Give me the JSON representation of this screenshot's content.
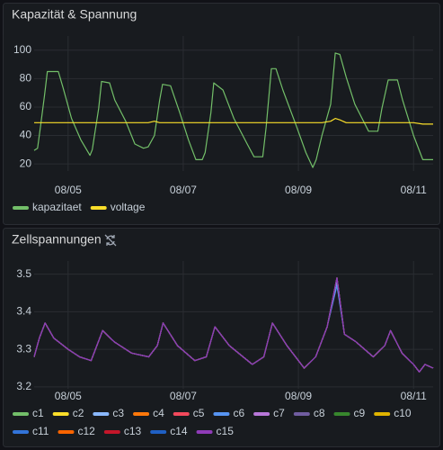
{
  "chart_data": [
    {
      "type": "line",
      "title": "Kapazität & Spannung",
      "x": [
        4.41,
        4.47,
        4.52,
        4.59,
        4.64,
        4.83,
        4.91,
        5.06,
        5.22,
        5.38,
        5.42,
        5.53,
        5.58,
        5.72,
        5.81,
        6.0,
        6.16,
        6.31,
        6.39,
        6.5,
        6.59,
        6.64,
        6.78,
        6.94,
        7.09,
        7.22,
        7.33,
        7.38,
        7.48,
        7.53,
        7.69,
        7.88,
        8.11,
        8.23,
        8.38,
        8.44,
        8.53,
        8.61,
        8.73,
        8.97,
        9.13,
        9.25,
        9.31,
        9.41,
        9.56,
        9.64,
        9.72,
        9.83,
        9.98,
        10.22,
        10.38,
        10.45,
        10.56,
        10.72,
        10.81,
        11.0,
        11.16,
        11.34
      ],
      "xlim": [
        4.41,
        11.34
      ],
      "xticks": [
        {
          "value": 5,
          "label": "08/05"
        },
        {
          "value": 7,
          "label": "08/07"
        },
        {
          "value": 9,
          "label": "08/09"
        },
        {
          "value": 11,
          "label": "08/11"
        }
      ],
      "ylim": [
        15,
        110
      ],
      "yticks": [
        20,
        40,
        60,
        80,
        100
      ],
      "grid": true,
      "series": [
        {
          "name": "kapazitaet",
          "color": "#73bf69",
          "values": [
            29.5,
            31,
            46,
            68,
            85,
            85,
            74,
            52,
            37,
            26,
            30,
            59,
            78,
            77,
            65,
            50,
            34,
            31,
            32,
            40,
            65,
            76,
            75,
            56,
            37,
            23,
            23,
            28,
            56,
            77,
            72,
            52,
            34,
            25,
            25,
            46,
            87,
            87,
            72,
            46,
            28,
            17.5,
            23,
            40,
            62,
            98,
            97,
            81,
            62,
            43,
            43,
            59,
            79,
            79,
            65,
            40,
            23,
            23
          ]
        },
        {
          "name": "voltage",
          "color": "#fade2a",
          "values": [
            49,
            49,
            49,
            49,
            49,
            49,
            49,
            49,
            49,
            49,
            49,
            49,
            49,
            49,
            49,
            49,
            49,
            49,
            49,
            50,
            49,
            49,
            49,
            49,
            49,
            49,
            49,
            49,
            49,
            49,
            49,
            49,
            49,
            49,
            49,
            49,
            49,
            49,
            49,
            49,
            49,
            49,
            49,
            49,
            50,
            52,
            51,
            49,
            49,
            49,
            49,
            49,
            49,
            49,
            49,
            49,
            48,
            48
          ]
        }
      ]
    },
    {
      "type": "line",
      "title": "Zellspannungen",
      "x": [
        4.41,
        4.5,
        4.6,
        4.75,
        5.0,
        5.2,
        5.4,
        5.5,
        5.6,
        5.8,
        6.1,
        6.4,
        6.55,
        6.65,
        6.9,
        7.2,
        7.4,
        7.55,
        7.8,
        8.2,
        8.4,
        8.55,
        8.8,
        9.1,
        9.3,
        9.5,
        9.67,
        9.8,
        10.0,
        10.3,
        10.5,
        10.6,
        10.8,
        11.0,
        11.1,
        11.2,
        11.34
      ],
      "xlim": [
        4.41,
        11.34
      ],
      "xticks": [
        {
          "value": 5,
          "label": "08/05"
        },
        {
          "value": 7,
          "label": "08/07"
        },
        {
          "value": 9,
          "label": "08/09"
        },
        {
          "value": 11,
          "label": "08/11"
        }
      ],
      "ylim": [
        3.195,
        3.535
      ],
      "yticks": [
        3.2,
        3.3,
        3.4,
        3.5
      ],
      "grid": true,
      "series": [
        {
          "name": "c1",
          "color": "#73bf69",
          "values": [
            3.28,
            3.33,
            3.37,
            3.33,
            3.3,
            3.28,
            3.27,
            3.31,
            3.35,
            3.32,
            3.29,
            3.28,
            3.31,
            3.37,
            3.31,
            3.27,
            3.28,
            3.36,
            3.31,
            3.26,
            3.28,
            3.37,
            3.31,
            3.25,
            3.28,
            3.36,
            3.49,
            3.34,
            3.32,
            3.28,
            3.31,
            3.35,
            3.29,
            3.26,
            3.24,
            3.26,
            3.25
          ]
        },
        {
          "name": "c2",
          "color": "#fade2a",
          "values": [
            3.28,
            3.33,
            3.37,
            3.33,
            3.3,
            3.28,
            3.27,
            3.31,
            3.35,
            3.32,
            3.29,
            3.28,
            3.31,
            3.37,
            3.31,
            3.27,
            3.28,
            3.36,
            3.31,
            3.26,
            3.28,
            3.37,
            3.31,
            3.25,
            3.28,
            3.36,
            3.49,
            3.34,
            3.32,
            3.28,
            3.31,
            3.35,
            3.29,
            3.26,
            3.24,
            3.26,
            3.25
          ]
        },
        {
          "name": "c3",
          "color": "#8ab8ff",
          "values": [
            3.28,
            3.33,
            3.37,
            3.33,
            3.3,
            3.28,
            3.27,
            3.31,
            3.35,
            3.32,
            3.29,
            3.28,
            3.31,
            3.37,
            3.31,
            3.27,
            3.28,
            3.36,
            3.31,
            3.26,
            3.28,
            3.37,
            3.31,
            3.25,
            3.28,
            3.36,
            3.48,
            3.34,
            3.32,
            3.28,
            3.31,
            3.35,
            3.29,
            3.26,
            3.24,
            3.26,
            3.25
          ]
        },
        {
          "name": "c4",
          "color": "#ff780a",
          "values": [
            3.28,
            3.33,
            3.37,
            3.33,
            3.3,
            3.28,
            3.27,
            3.31,
            3.35,
            3.32,
            3.29,
            3.28,
            3.31,
            3.37,
            3.31,
            3.27,
            3.28,
            3.36,
            3.31,
            3.26,
            3.28,
            3.37,
            3.31,
            3.25,
            3.28,
            3.36,
            3.49,
            3.34,
            3.32,
            3.28,
            3.31,
            3.35,
            3.29,
            3.26,
            3.24,
            3.26,
            3.25
          ]
        },
        {
          "name": "c5",
          "color": "#f2495c",
          "values": [
            3.28,
            3.33,
            3.37,
            3.33,
            3.3,
            3.28,
            3.27,
            3.31,
            3.35,
            3.32,
            3.29,
            3.28,
            3.31,
            3.37,
            3.31,
            3.27,
            3.28,
            3.36,
            3.31,
            3.26,
            3.28,
            3.37,
            3.31,
            3.25,
            3.28,
            3.36,
            3.49,
            3.34,
            3.32,
            3.28,
            3.31,
            3.35,
            3.29,
            3.26,
            3.24,
            3.26,
            3.25
          ]
        },
        {
          "name": "c6",
          "color": "#5794f2",
          "values": [
            3.28,
            3.33,
            3.37,
            3.33,
            3.3,
            3.28,
            3.27,
            3.31,
            3.35,
            3.32,
            3.29,
            3.28,
            3.31,
            3.37,
            3.31,
            3.27,
            3.28,
            3.36,
            3.31,
            3.26,
            3.28,
            3.37,
            3.31,
            3.25,
            3.28,
            3.36,
            3.47,
            3.34,
            3.32,
            3.28,
            3.31,
            3.35,
            3.29,
            3.26,
            3.24,
            3.26,
            3.25
          ]
        },
        {
          "name": "c7",
          "color": "#b877d9",
          "values": [
            3.28,
            3.33,
            3.37,
            3.33,
            3.3,
            3.28,
            3.27,
            3.31,
            3.35,
            3.32,
            3.29,
            3.28,
            3.31,
            3.37,
            3.31,
            3.27,
            3.28,
            3.36,
            3.31,
            3.26,
            3.28,
            3.37,
            3.31,
            3.25,
            3.28,
            3.36,
            3.49,
            3.34,
            3.32,
            3.28,
            3.31,
            3.35,
            3.29,
            3.26,
            3.24,
            3.26,
            3.25
          ]
        },
        {
          "name": "c8",
          "color": "#705da0",
          "values": [
            3.28,
            3.33,
            3.37,
            3.33,
            3.3,
            3.28,
            3.27,
            3.31,
            3.35,
            3.32,
            3.29,
            3.28,
            3.31,
            3.37,
            3.31,
            3.27,
            3.28,
            3.36,
            3.31,
            3.26,
            3.28,
            3.37,
            3.31,
            3.25,
            3.28,
            3.36,
            3.49,
            3.34,
            3.32,
            3.28,
            3.31,
            3.35,
            3.29,
            3.26,
            3.24,
            3.26,
            3.25
          ]
        },
        {
          "name": "c9",
          "color": "#37872d",
          "values": [
            3.28,
            3.33,
            3.37,
            3.33,
            3.3,
            3.28,
            3.27,
            3.31,
            3.35,
            3.32,
            3.29,
            3.28,
            3.31,
            3.37,
            3.31,
            3.27,
            3.28,
            3.36,
            3.31,
            3.26,
            3.28,
            3.37,
            3.31,
            3.25,
            3.28,
            3.36,
            3.49,
            3.34,
            3.32,
            3.28,
            3.31,
            3.35,
            3.29,
            3.26,
            3.24,
            3.26,
            3.25
          ]
        },
        {
          "name": "c10",
          "color": "#e0b400",
          "values": [
            3.28,
            3.33,
            3.37,
            3.33,
            3.3,
            3.28,
            3.27,
            3.31,
            3.35,
            3.32,
            3.29,
            3.28,
            3.31,
            3.37,
            3.31,
            3.27,
            3.28,
            3.36,
            3.31,
            3.26,
            3.28,
            3.37,
            3.31,
            3.25,
            3.28,
            3.36,
            3.49,
            3.34,
            3.32,
            3.28,
            3.31,
            3.35,
            3.29,
            3.26,
            3.24,
            3.26,
            3.25
          ]
        },
        {
          "name": "c11",
          "color": "#3274d9",
          "values": [
            3.28,
            3.33,
            3.37,
            3.33,
            3.3,
            3.28,
            3.27,
            3.31,
            3.35,
            3.32,
            3.29,
            3.28,
            3.31,
            3.37,
            3.31,
            3.27,
            3.28,
            3.36,
            3.31,
            3.26,
            3.28,
            3.37,
            3.31,
            3.25,
            3.28,
            3.36,
            3.49,
            3.34,
            3.32,
            3.28,
            3.31,
            3.35,
            3.29,
            3.26,
            3.24,
            3.26,
            3.25
          ]
        },
        {
          "name": "c12",
          "color": "#fa6400",
          "values": [
            3.28,
            3.33,
            3.37,
            3.33,
            3.3,
            3.28,
            3.27,
            3.31,
            3.35,
            3.32,
            3.29,
            3.28,
            3.31,
            3.37,
            3.31,
            3.27,
            3.28,
            3.36,
            3.31,
            3.26,
            3.28,
            3.37,
            3.31,
            3.25,
            3.28,
            3.36,
            3.49,
            3.34,
            3.32,
            3.28,
            3.31,
            3.35,
            3.29,
            3.26,
            3.24,
            3.26,
            3.25
          ]
        },
        {
          "name": "c13",
          "color": "#c4162a",
          "values": [
            3.28,
            3.33,
            3.37,
            3.33,
            3.3,
            3.28,
            3.27,
            3.31,
            3.35,
            3.32,
            3.29,
            3.28,
            3.31,
            3.37,
            3.31,
            3.27,
            3.28,
            3.36,
            3.31,
            3.26,
            3.28,
            3.37,
            3.31,
            3.25,
            3.28,
            3.36,
            3.49,
            3.34,
            3.32,
            3.28,
            3.31,
            3.35,
            3.29,
            3.26,
            3.24,
            3.26,
            3.25
          ]
        },
        {
          "name": "c14",
          "color": "#1f60c4",
          "values": [
            3.28,
            3.33,
            3.37,
            3.33,
            3.3,
            3.28,
            3.27,
            3.31,
            3.35,
            3.32,
            3.29,
            3.28,
            3.31,
            3.37,
            3.31,
            3.27,
            3.28,
            3.36,
            3.31,
            3.26,
            3.28,
            3.37,
            3.31,
            3.25,
            3.28,
            3.36,
            3.49,
            3.34,
            3.32,
            3.28,
            3.31,
            3.35,
            3.29,
            3.26,
            3.24,
            3.26,
            3.25
          ]
        },
        {
          "name": "c15",
          "color": "#8f3bb8",
          "values": [
            3.28,
            3.33,
            3.37,
            3.33,
            3.3,
            3.28,
            3.27,
            3.31,
            3.35,
            3.32,
            3.29,
            3.28,
            3.31,
            3.37,
            3.31,
            3.27,
            3.28,
            3.36,
            3.31,
            3.26,
            3.28,
            3.37,
            3.31,
            3.25,
            3.28,
            3.36,
            3.49,
            3.34,
            3.32,
            3.28,
            3.31,
            3.35,
            3.29,
            3.26,
            3.24,
            3.26,
            3.25
          ]
        }
      ]
    }
  ]
}
